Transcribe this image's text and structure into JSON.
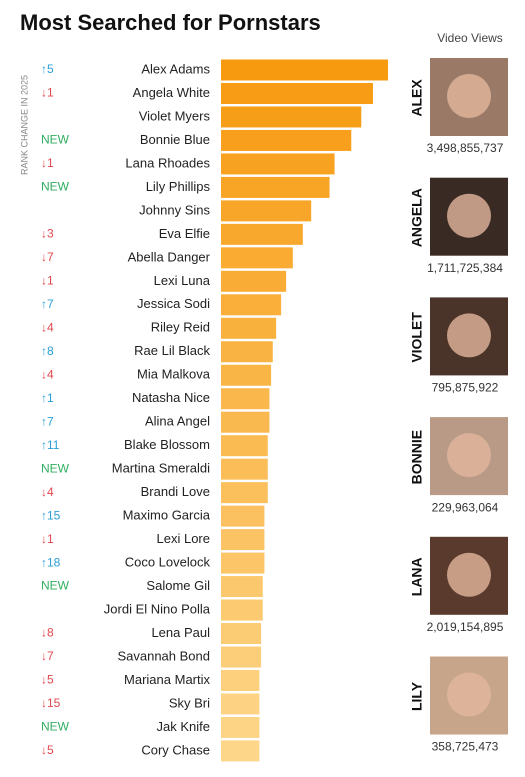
{
  "chart_data": {
    "type": "bar",
    "orientation": "horizontal",
    "title": "Most Searched for Pornstars",
    "rank_axis_label": "RANK CHANGE IN 2025",
    "views_header": "Video Views",
    "categories": [
      "Alex Adams",
      "Angela White",
      "Violet Myers",
      "Bonnie Blue",
      "Lana Rhoades",
      "Lily Phillips",
      "Johnny Sins",
      "Eva Elfie",
      "Abella Danger",
      "Lexi Luna",
      "Jessica Sodi",
      "Riley Reid",
      "Rae Lil Black",
      "Mia Malkova",
      "Natasha Nice",
      "Alina Angel",
      "Blake Blossom",
      "Martina Smeraldi",
      "Brandi Love",
      "Maximo Garcia",
      "Lexi Lore",
      "Coco Lovelock",
      "Salome Gil",
      "Jordi El Nino Polla",
      "Lena Paul",
      "Savannah Bond",
      "Mariana Martix",
      "Sky Bri",
      "Jak Knife",
      "Cory Chase"
    ],
    "values": [
      100,
      91,
      84,
      78,
      68,
      65,
      54,
      49,
      43,
      39,
      36,
      33,
      31,
      30,
      29,
      29,
      28,
      28,
      28,
      26,
      26,
      26,
      25,
      25,
      24,
      24,
      23,
      23,
      23,
      23
    ],
    "rank_changes": [
      "↑5",
      "↓1",
      null,
      "NEW",
      "↓1",
      "NEW",
      null,
      "↓3",
      "↓7",
      "↓1",
      "↑7",
      "↓4",
      "↑8",
      "↓4",
      "↑1",
      "↑7",
      "↑11",
      "NEW",
      "↓4",
      "↑15",
      "↓1",
      "↑18",
      "NEW",
      null,
      "↓8",
      "↓7",
      "↓5",
      "↓15",
      "NEW",
      "↓5"
    ],
    "colors": {
      "bar_top": "#f79a10",
      "bar_bottom": "#fdd68a",
      "up": "#2a9fd6",
      "down": "#e0474c",
      "new": "#2fae5f"
    },
    "featured": [
      {
        "name": "ALEX",
        "views": "3,498,855,737"
      },
      {
        "name": "ANGELA",
        "views": "1,711,725,384"
      },
      {
        "name": "VIOLET",
        "views": "795,875,922"
      },
      {
        "name": "BONNIE",
        "views": "229,963,064"
      },
      {
        "name": "LANA",
        "views": "2,019,154,895"
      },
      {
        "name": "LILY",
        "views": "358,725,473"
      }
    ]
  }
}
